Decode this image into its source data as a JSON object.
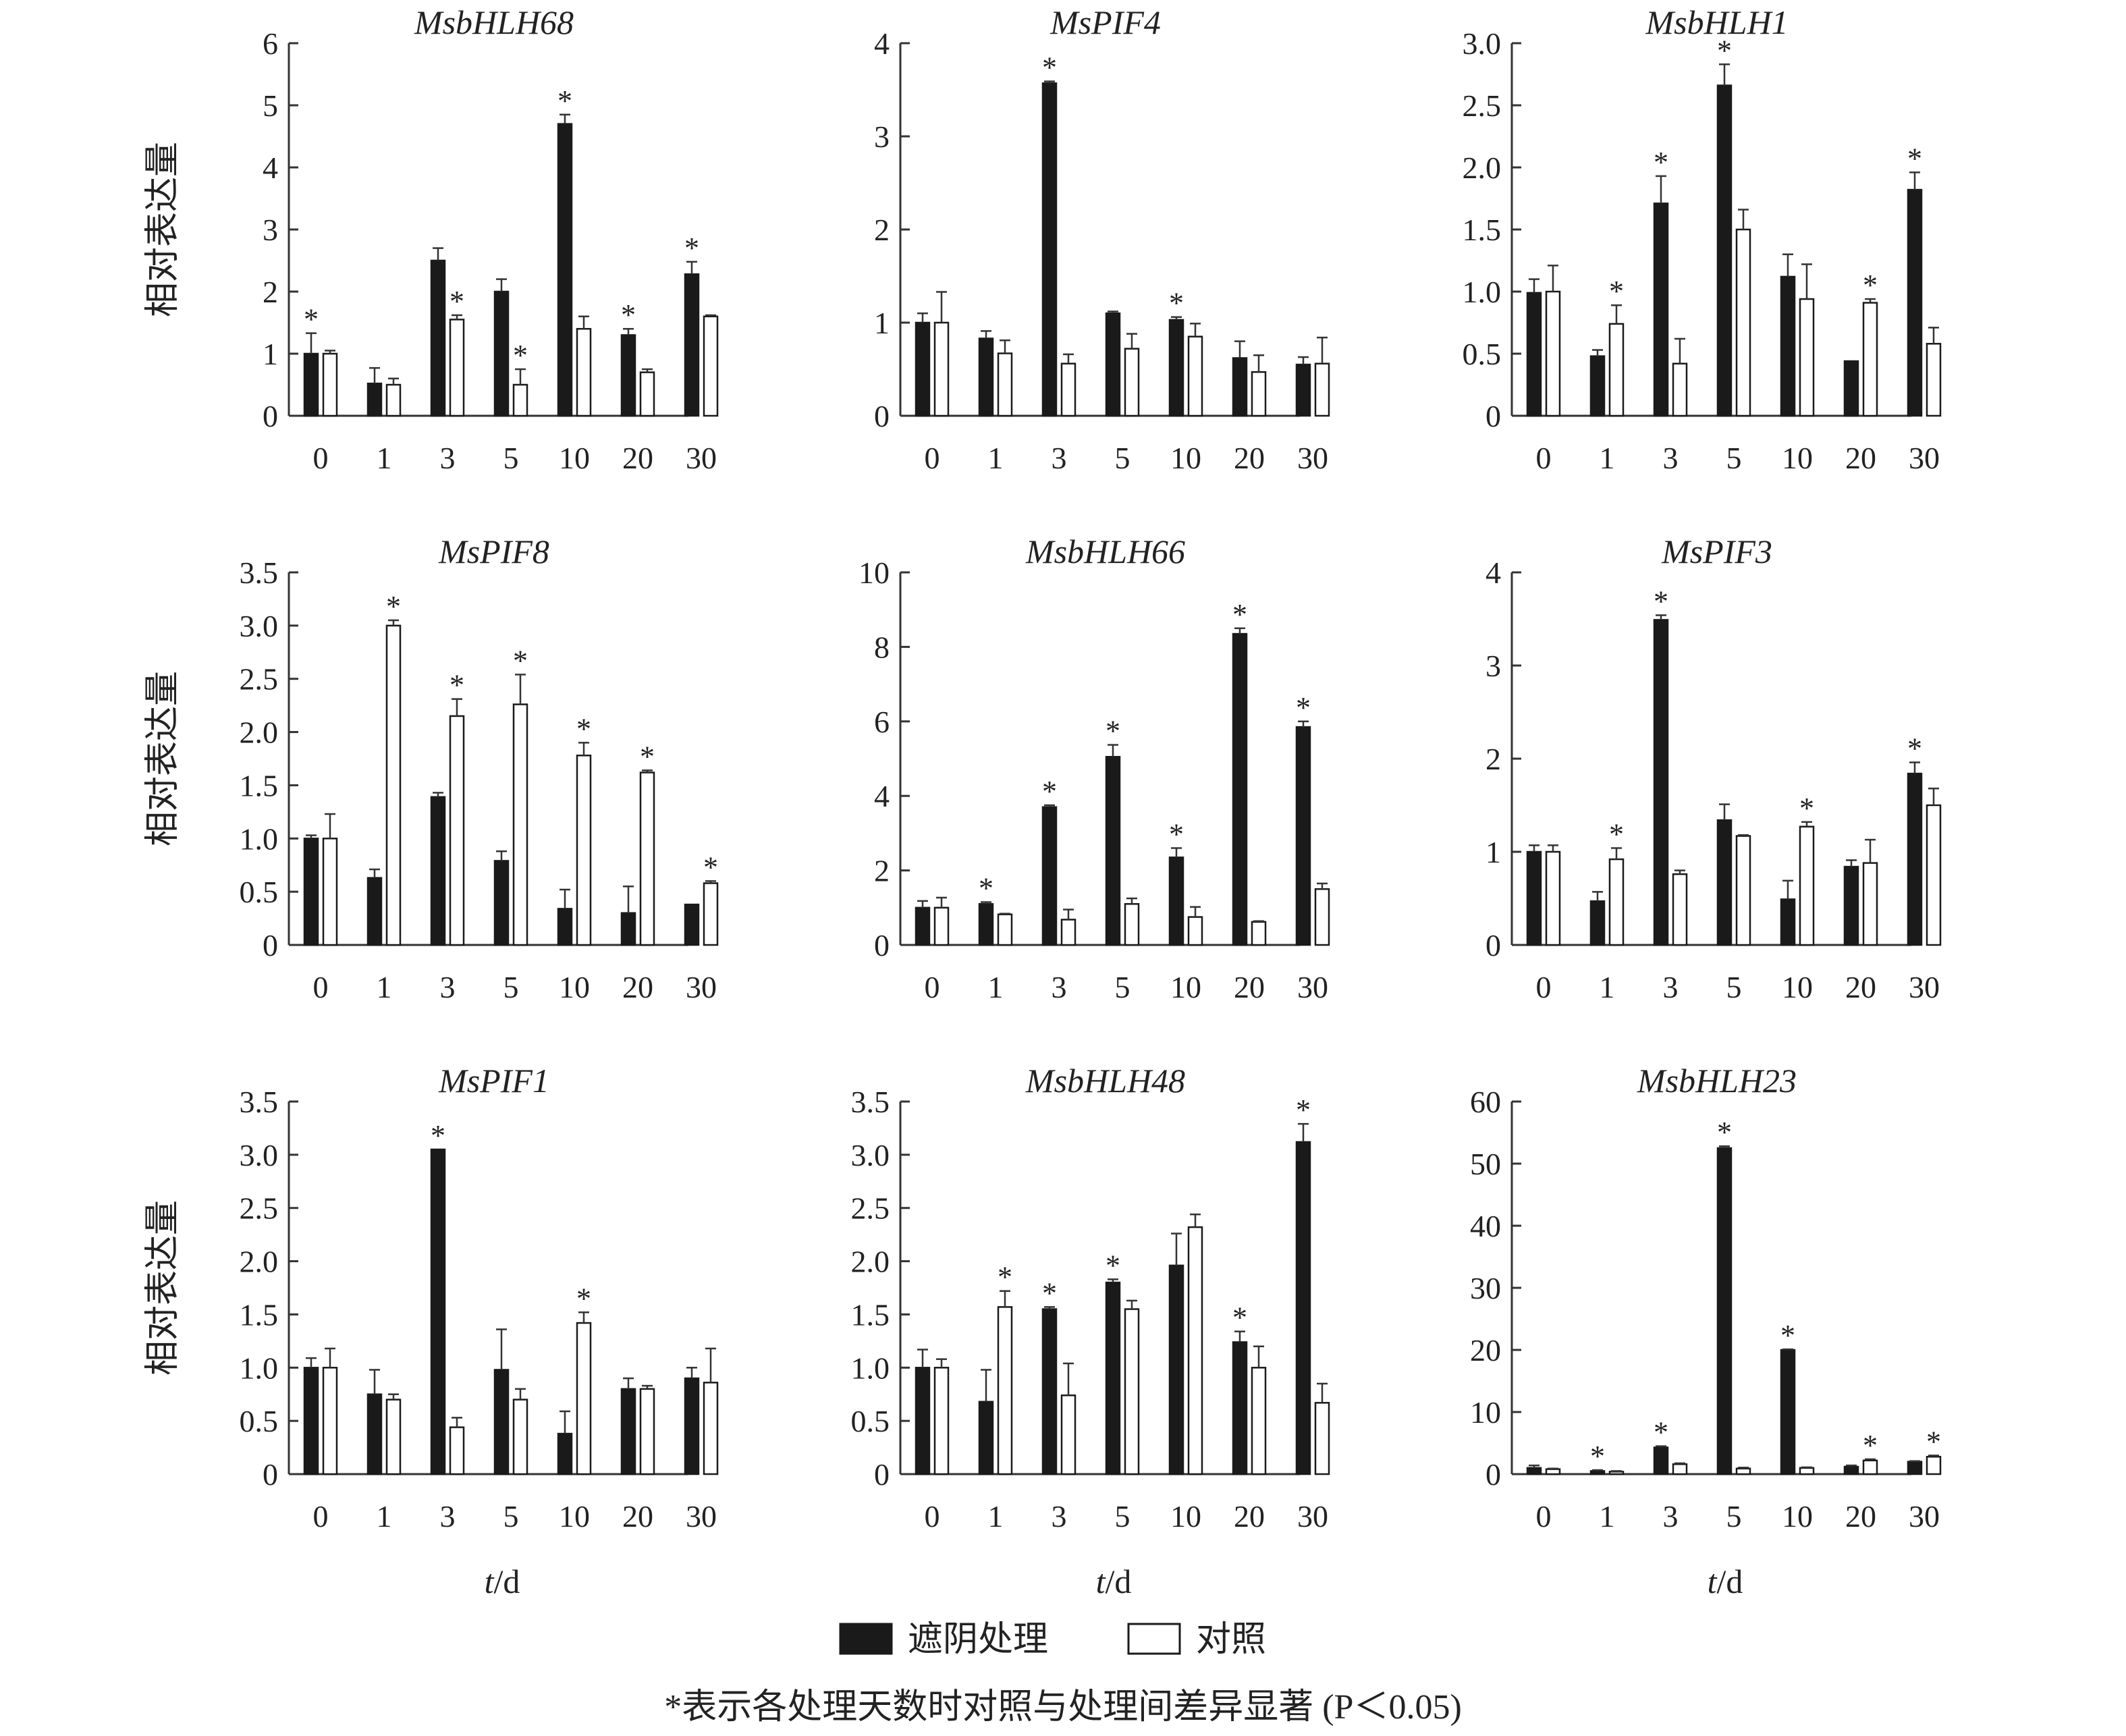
{
  "chart_data": [
    {
      "type": "bar",
      "title": "MsbHLH68",
      "ylabel": "相对表达量",
      "xlabel": "",
      "categories": [
        "0",
        "1",
        "3",
        "5",
        "10",
        "20",
        "30"
      ],
      "ylim": [
        0,
        6
      ],
      "yticks": [
        "0",
        "1",
        "2",
        "3",
        "4",
        "5",
        "6"
      ],
      "series": [
        {
          "name": "遮阴处理",
          "values": [
            1.0,
            0.52,
            2.5,
            2.0,
            4.7,
            1.3,
            2.28
          ],
          "errors": [
            0.33,
            0.25,
            0.2,
            0.2,
            0.15,
            0.1,
            0.2
          ]
        },
        {
          "name": "对照",
          "values": [
            1.0,
            0.5,
            1.55,
            0.5,
            1.4,
            0.7,
            1.6
          ],
          "errors": [
            0.05,
            0.1,
            0.07,
            0.25,
            0.2,
            0.05,
            0.02
          ]
        }
      ],
      "significant": [
        "4",
        "",
        "5",
        "5",
        "4",
        "4",
        "4"
      ]
    },
    {
      "type": "bar",
      "title": "MsPIF4",
      "ylabel": "",
      "xlabel": "",
      "categories": [
        "0",
        "1",
        "3",
        "5",
        "10",
        "20",
        "30"
      ],
      "ylim": [
        0,
        4
      ],
      "yticks": [
        "0",
        "1",
        "2",
        "3",
        "4"
      ],
      "series": [
        {
          "name": "遮阴处理",
          "values": [
            1.0,
            0.83,
            3.57,
            1.1,
            1.03,
            0.62,
            0.55
          ],
          "errors": [
            0.1,
            0.08,
            0.02,
            0.02,
            0.03,
            0.18,
            0.08
          ]
        },
        {
          "name": "对照",
          "values": [
            1.0,
            0.67,
            0.56,
            0.72,
            0.85,
            0.47,
            0.56
          ],
          "errors": [
            0.33,
            0.14,
            0.1,
            0.16,
            0.14,
            0.18,
            0.28
          ]
        }
      ],
      "significant": [
        "",
        "",
        "4",
        "",
        "4",
        "",
        ""
      ]
    },
    {
      "type": "bar",
      "title": "MsbHLH1",
      "ylabel": "",
      "xlabel": "",
      "categories": [
        "0",
        "1",
        "3",
        "5",
        "10",
        "20",
        "30"
      ],
      "ylim": [
        0,
        3
      ],
      "yticks": [
        "0",
        "0.5",
        "1.0",
        "1.5",
        "2.0",
        "2.5",
        "3.0"
      ],
      "series": [
        {
          "name": "遮阴处理",
          "values": [
            0.99,
            0.48,
            1.71,
            2.66,
            1.12,
            0.44,
            1.82
          ],
          "errors": [
            0.11,
            0.05,
            0.22,
            0.17,
            0.18,
            0,
            0.14
          ]
        },
        {
          "name": "对照",
          "values": [
            1.0,
            0.74,
            0.42,
            1.5,
            0.94,
            0.91,
            0.58
          ],
          "errors": [
            0.21,
            0.15,
            0.2,
            0.16,
            0.28,
            0.03,
            0.13
          ]
        }
      ],
      "significant": [
        "",
        "5",
        "4",
        "4",
        "",
        "5",
        "4"
      ]
    },
    {
      "type": "bar",
      "title": "MsPIF8",
      "ylabel": "相对表达量",
      "xlabel": "",
      "categories": [
        "0",
        "1",
        "3",
        "5",
        "10",
        "20",
        "30"
      ],
      "ylim": [
        0,
        3.5
      ],
      "yticks": [
        "0",
        "0.5",
        "1.0",
        "1.5",
        "2.0",
        "2.5",
        "3.0",
        "3.5"
      ],
      "series": [
        {
          "name": "遮阴处理",
          "values": [
            1.0,
            0.63,
            1.39,
            0.79,
            0.34,
            0.3,
            0.38
          ],
          "errors": [
            0.03,
            0.08,
            0.04,
            0.09,
            0.18,
            0.25,
            0
          ]
        },
        {
          "name": "对照",
          "values": [
            1.0,
            3.0,
            2.15,
            2.26,
            1.78,
            1.62,
            0.58
          ],
          "errors": [
            0.23,
            0.05,
            0.16,
            0.28,
            0.12,
            0.02,
            0.02
          ]
        }
      ],
      "significant": [
        "",
        "5",
        "5",
        "5",
        "5",
        "5",
        "5"
      ]
    },
    {
      "type": "bar",
      "title": "MsbHLH66",
      "ylabel": "",
      "xlabel": "",
      "categories": [
        "0",
        "1",
        "3",
        "5",
        "10",
        "20",
        "30"
      ],
      "ylim": [
        0,
        10
      ],
      "yticks": [
        "0",
        "2",
        "4",
        "6",
        "8",
        "10"
      ],
      "series": [
        {
          "name": "遮阴处理",
          "values": [
            1.0,
            1.1,
            3.7,
            5.05,
            2.35,
            8.35,
            5.85
          ],
          "errors": [
            0.18,
            0.05,
            0.05,
            0.32,
            0.25,
            0.15,
            0.15
          ]
        },
        {
          "name": "对照",
          "values": [
            1.0,
            0.82,
            0.68,
            1.1,
            0.75,
            0.62,
            1.5
          ],
          "errors": [
            0.27,
            0.02,
            0.27,
            0.15,
            0.27,
            0.02,
            0.15
          ]
        }
      ],
      "significant": [
        "",
        "4",
        "4",
        "4",
        "4",
        "4",
        "4"
      ]
    },
    {
      "type": "bar",
      "title": "MsPIF3",
      "ylabel": "",
      "xlabel": "",
      "categories": [
        "0",
        "1",
        "3",
        "5",
        "10",
        "20",
        "30"
      ],
      "ylim": [
        0,
        4
      ],
      "yticks": [
        "0",
        "1",
        "2",
        "3",
        "4"
      ],
      "series": [
        {
          "name": "遮阴处理",
          "values": [
            1.0,
            0.47,
            3.49,
            1.34,
            0.49,
            0.84,
            1.84
          ],
          "errors": [
            0.07,
            0.1,
            0.05,
            0.17,
            0.2,
            0.07,
            0.12
          ]
        },
        {
          "name": "对照",
          "values": [
            1.0,
            0.92,
            0.76,
            1.17,
            1.27,
            0.88,
            1.5
          ],
          "errors": [
            0.07,
            0.12,
            0.04,
            0.01,
            0.05,
            0.25,
            0.18
          ]
        }
      ],
      "significant": [
        "",
        "5",
        "4",
        "",
        "5",
        "",
        "4"
      ]
    },
    {
      "type": "bar",
      "title": "MsPIF1",
      "ylabel": "相对表达量",
      "xlabel": "t/d",
      "categories": [
        "0",
        "1",
        "3",
        "5",
        "10",
        "20",
        "30"
      ],
      "ylim": [
        0,
        3.5
      ],
      "yticks": [
        "0",
        "0.5",
        "1.0",
        "1.5",
        "2.0",
        "2.5",
        "3.0",
        "3.5"
      ],
      "series": [
        {
          "name": "遮阴处理",
          "values": [
            1.0,
            0.75,
            3.05,
            0.98,
            0.38,
            0.8,
            0.9
          ],
          "errors": [
            0.09,
            0.23,
            0,
            0.38,
            0.21,
            0.1,
            0.1
          ]
        },
        {
          "name": "对照",
          "values": [
            1.0,
            0.7,
            0.44,
            0.7,
            1.42,
            0.8,
            0.86
          ],
          "errors": [
            0.18,
            0.05,
            0.09,
            0.1,
            0.1,
            0.03,
            0.32
          ]
        }
      ],
      "significant": [
        "",
        "",
        "4",
        "",
        "5",
        "",
        ""
      ]
    },
    {
      "type": "bar",
      "title": "MsbHLH48",
      "ylabel": "",
      "xlabel": "t/d",
      "categories": [
        "0",
        "1",
        "3",
        "5",
        "10",
        "20",
        "30"
      ],
      "ylim": [
        0,
        3.5
      ],
      "yticks": [
        "0",
        "0.5",
        "1.0",
        "1.5",
        "2.0",
        "2.5",
        "3.0",
        "3.5"
      ],
      "series": [
        {
          "name": "遮阴处理",
          "values": [
            1.0,
            0.68,
            1.55,
            1.8,
            1.96,
            1.24,
            3.12
          ],
          "errors": [
            0.17,
            0.3,
            0.02,
            0.03,
            0.3,
            0.1,
            0.17
          ]
        },
        {
          "name": "对照",
          "values": [
            1.0,
            1.57,
            0.74,
            1.55,
            2.32,
            1.0,
            0.67
          ],
          "errors": [
            0.08,
            0.15,
            0.3,
            0.08,
            0.12,
            0.2,
            0.18
          ]
        }
      ],
      "significant": [
        "",
        "5",
        "4",
        "4",
        "",
        "4",
        "4"
      ]
    },
    {
      "type": "bar",
      "title": "MsbHLH23",
      "ylabel": "",
      "xlabel": "t/d",
      "categories": [
        "0",
        "1",
        "3",
        "5",
        "10",
        "20",
        "30"
      ],
      "ylim": [
        0,
        60
      ],
      "yticks": [
        "0",
        "10",
        "20",
        "30",
        "40",
        "50",
        "60"
      ],
      "series": [
        {
          "name": "遮阴处理",
          "values": [
            1.0,
            0.5,
            4.3,
            52.5,
            20.0,
            1.2,
            2.0
          ],
          "errors": [
            0.4,
            0.15,
            0.2,
            0.3,
            0.1,
            0.2,
            0.1
          ]
        },
        {
          "name": "对照",
          "values": [
            0.8,
            0.4,
            1.6,
            0.9,
            1.0,
            2.2,
            2.8
          ],
          "errors": [
            0.1,
            0.1,
            0.15,
            0.15,
            0.1,
            0.2,
            0.2
          ]
        }
      ],
      "significant": [
        "",
        "4",
        "4",
        "4",
        "4",
        "5",
        "5"
      ]
    }
  ],
  "significance_mark": "*",
  "legend": {
    "items": [
      {
        "label": "遮阴处理",
        "color": "#1a1a1a"
      },
      {
        "label": "对照",
        "color": "#ffffff"
      }
    ]
  },
  "footnote": "*表示各处理天数时对照与处理间差异显著 (P＜0.05)",
  "colors": {
    "treatment": "#1a1a1a",
    "control": "#ffffff",
    "axis": "#333333"
  }
}
